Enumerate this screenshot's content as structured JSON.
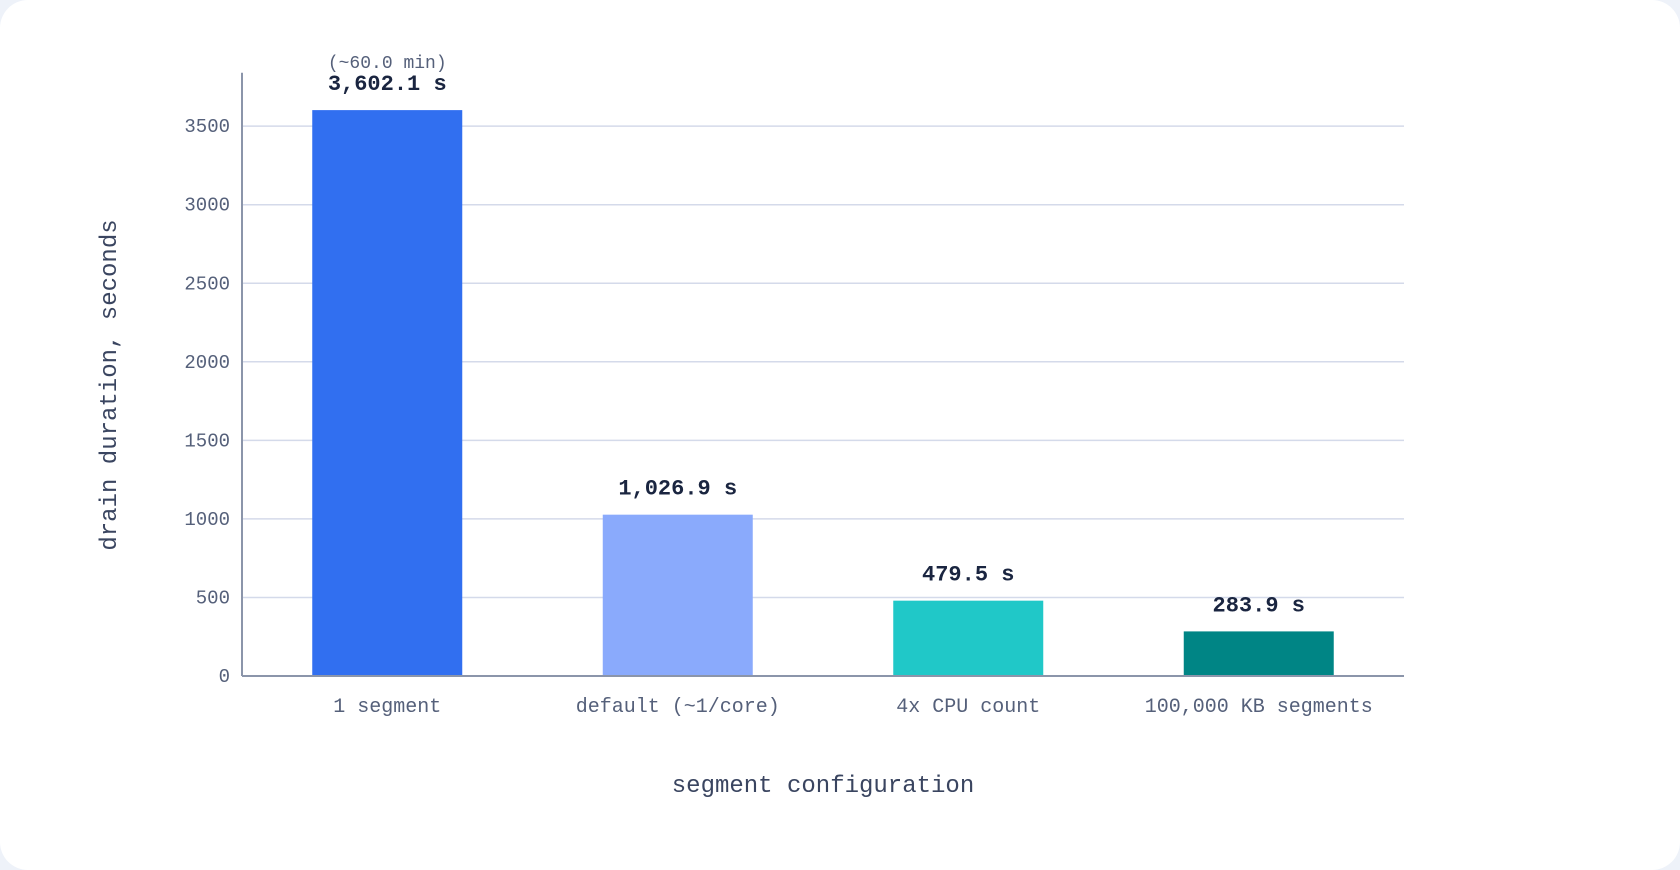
{
  "chart_data": {
    "type": "bar",
    "xlabel": "segment configuration",
    "ylabel": "drain duration, seconds",
    "ylim": [
      0,
      3700
    ],
    "yticks": [
      0,
      500,
      1000,
      1500,
      2000,
      2500,
      3000,
      3500
    ],
    "ytick_labels": [
      "0",
      "500",
      "1000",
      "1500",
      "2000",
      "2500",
      "3000",
      "3500"
    ],
    "grid": true,
    "categories": [
      "1 segment",
      "default (~1/core)",
      "4x CPU count",
      "100,000 KB segments"
    ],
    "values": [
      3602.1,
      1026.9,
      479.5,
      283.9
    ],
    "value_labels": [
      "3,602.1 s",
      "1,026.9 s",
      "479.5 s",
      "283.9 s"
    ],
    "annotations": [
      {
        "category": "1 segment",
        "text": "(~60.0 min)"
      }
    ],
    "colors": [
      "#316ff0",
      "#8aaafc",
      "#20c8c8",
      "#008585"
    ],
    "palette": {
      "grid": "#d4daea",
      "axis": "#8b95aa",
      "tick_text": "#55607a",
      "label_text": "#3a4560",
      "value_text": "#1a2540"
    }
  }
}
